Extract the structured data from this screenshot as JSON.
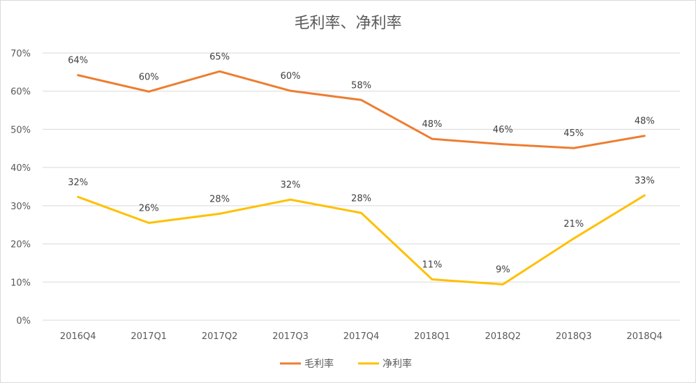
{
  "chart_data": {
    "type": "line",
    "title": "毛利率、净利率",
    "xlabel": "",
    "ylabel": "",
    "categories": [
      "2016Q4",
      "2017Q1",
      "2017Q2",
      "2017Q3",
      "2017Q4",
      "2018Q1",
      "2018Q2",
      "2018Q3",
      "2018Q4"
    ],
    "ylim": [
      0,
      70
    ],
    "yticks": [
      "0%",
      "10%",
      "20%",
      "30%",
      "40%",
      "50%",
      "60%",
      "70%"
    ],
    "grid": true,
    "legend_position": "bottom",
    "series": [
      {
        "name": "毛利率",
        "color": "#ed7d31",
        "values": [
          64,
          60,
          65,
          60,
          58,
          48,
          46,
          45,
          48
        ],
        "plot_values": [
          64.2,
          59.9,
          65.2,
          60.1,
          57.7,
          47.5,
          46.1,
          45.1,
          48.3
        ],
        "labels": [
          "64%",
          "60%",
          "65%",
          "60%",
          "58%",
          "48%",
          "46%",
          "45%",
          "48%"
        ]
      },
      {
        "name": "净利率",
        "color": "#ffc000",
        "values": [
          32,
          26,
          28,
          32,
          28,
          11,
          9,
          21,
          33
        ],
        "plot_values": [
          32.3,
          25.5,
          27.9,
          31.6,
          28.1,
          10.7,
          9.4,
          21.4,
          32.7
        ],
        "labels": [
          "32%",
          "26%",
          "28%",
          "32%",
          "28%",
          "11%",
          "9%",
          "21%",
          "33%"
        ]
      }
    ]
  }
}
